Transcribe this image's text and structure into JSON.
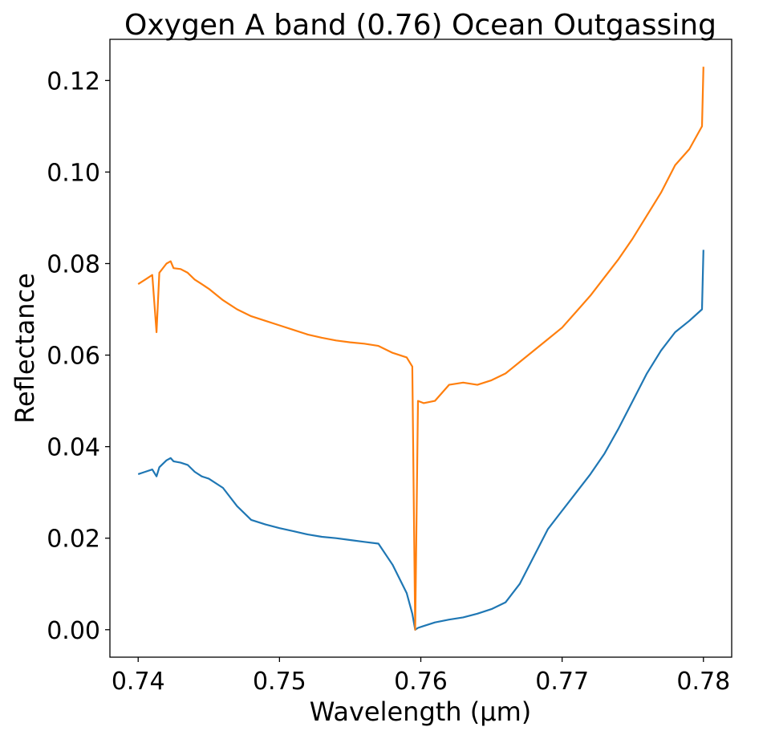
{
  "chart_data": {
    "type": "line",
    "title": "Oxygen A band (0.76) Ocean Outgassing",
    "xlabel": "Wavelength (μm)",
    "ylabel": "Reflectance",
    "xlim": [
      0.738,
      0.782
    ],
    "ylim": [
      -0.006,
      0.129
    ],
    "xticks": [
      0.74,
      0.75,
      0.76,
      0.77,
      0.78
    ],
    "xtick_labels": [
      "0.74",
      "0.75",
      "0.76",
      "0.77",
      "0.78"
    ],
    "yticks": [
      0.0,
      0.02,
      0.04,
      0.06,
      0.08,
      0.1,
      0.12
    ],
    "ytick_labels": [
      "0.00",
      "0.02",
      "0.04",
      "0.06",
      "0.08",
      "0.10",
      "0.12"
    ],
    "grid": false,
    "legend": "none",
    "colors": {
      "series_1": "#1f77b4",
      "series_2": "#ff7f0e"
    },
    "series": [
      {
        "color": "#1f77b4",
        "x": [
          0.74,
          0.7405,
          0.741,
          0.7413,
          0.7415,
          0.742,
          0.7423,
          0.7425,
          0.743,
          0.7435,
          0.744,
          0.7445,
          0.745,
          0.746,
          0.747,
          0.748,
          0.749,
          0.75,
          0.751,
          0.752,
          0.753,
          0.754,
          0.755,
          0.756,
          0.757,
          0.758,
          0.759,
          0.7594,
          0.7596,
          0.7598,
          0.7602,
          0.761,
          0.762,
          0.763,
          0.764,
          0.765,
          0.766,
          0.767,
          0.768,
          0.769,
          0.77,
          0.771,
          0.772,
          0.773,
          0.774,
          0.775,
          0.776,
          0.777,
          0.778,
          0.779,
          0.7799,
          0.78
        ],
        "y": [
          0.034,
          0.0345,
          0.035,
          0.0335,
          0.0355,
          0.037,
          0.0375,
          0.0368,
          0.0365,
          0.036,
          0.0345,
          0.0335,
          0.033,
          0.031,
          0.027,
          0.024,
          0.023,
          0.0222,
          0.0215,
          0.0208,
          0.0203,
          0.02,
          0.0196,
          0.0192,
          0.0188,
          0.0142,
          0.008,
          0.0035,
          0.0,
          0.0004,
          0.0008,
          0.0016,
          0.0022,
          0.0027,
          0.0035,
          0.0045,
          0.006,
          0.01,
          0.016,
          0.022,
          0.026,
          0.03,
          0.034,
          0.0385,
          0.044,
          0.05,
          0.056,
          0.061,
          0.065,
          0.0675,
          0.07,
          0.083
        ]
      },
      {
        "color": "#ff7f0e",
        "x": [
          0.74,
          0.7405,
          0.741,
          0.7413,
          0.7415,
          0.742,
          0.7423,
          0.7425,
          0.743,
          0.7435,
          0.744,
          0.7445,
          0.745,
          0.746,
          0.747,
          0.748,
          0.749,
          0.75,
          0.751,
          0.752,
          0.753,
          0.754,
          0.755,
          0.756,
          0.757,
          0.758,
          0.759,
          0.7594,
          0.7596,
          0.7598,
          0.7602,
          0.761,
          0.762,
          0.763,
          0.764,
          0.765,
          0.766,
          0.767,
          0.768,
          0.769,
          0.77,
          0.771,
          0.772,
          0.773,
          0.774,
          0.775,
          0.776,
          0.777,
          0.778,
          0.779,
          0.7799,
          0.78
        ],
        "y": [
          0.0755,
          0.0765,
          0.0775,
          0.065,
          0.078,
          0.08,
          0.0805,
          0.079,
          0.0788,
          0.078,
          0.0765,
          0.0755,
          0.0745,
          0.072,
          0.07,
          0.0685,
          0.0675,
          0.0665,
          0.0655,
          0.0645,
          0.0638,
          0.0632,
          0.0628,
          0.0625,
          0.062,
          0.0605,
          0.0595,
          0.0575,
          0.0,
          0.05,
          0.0495,
          0.05,
          0.0535,
          0.054,
          0.0535,
          0.0545,
          0.056,
          0.0585,
          0.061,
          0.0635,
          0.066,
          0.0695,
          0.073,
          0.077,
          0.081,
          0.0855,
          0.0905,
          0.0955,
          0.1015,
          0.105,
          0.11,
          0.123
        ]
      }
    ]
  }
}
